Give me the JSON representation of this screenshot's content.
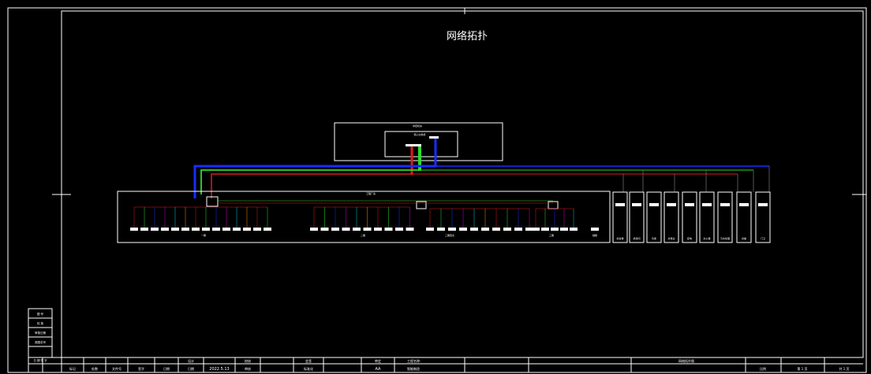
{
  "drawing": {
    "title": "网络拓扑",
    "labels": {
      "control_room": "中控机房",
      "core_switch": "核心交换机",
      "plant": "工程厂房",
      "zone_1": "一期",
      "zone_2": "二期",
      "zone_3": "三期西北",
      "zone_4": "三期",
      "zone_5": "辅楼"
    },
    "side_units": [
      "综合楼",
      "机修间",
      "仓库",
      "水泵房",
      "配电",
      "办公楼",
      "污水处理",
      "食堂",
      "门卫"
    ]
  },
  "left_block": {
    "rows": [
      "图 号",
      "校 核",
      "审核日期",
      "底图总号",
      "日 期    签 字"
    ]
  },
  "title_block": {
    "cells": [
      "标记",
      "处数",
      "文件号",
      "签字",
      "日期",
      "设计",
      "日期",
      "2022.5.13",
      "校核",
      "审核",
      "会签",
      "标准化",
      "审定",
      "AA",
      "工程名称:",
      "智能制造",
      "网络拓扑图",
      "比例",
      "第 1 页",
      "共 1 页"
    ]
  }
}
